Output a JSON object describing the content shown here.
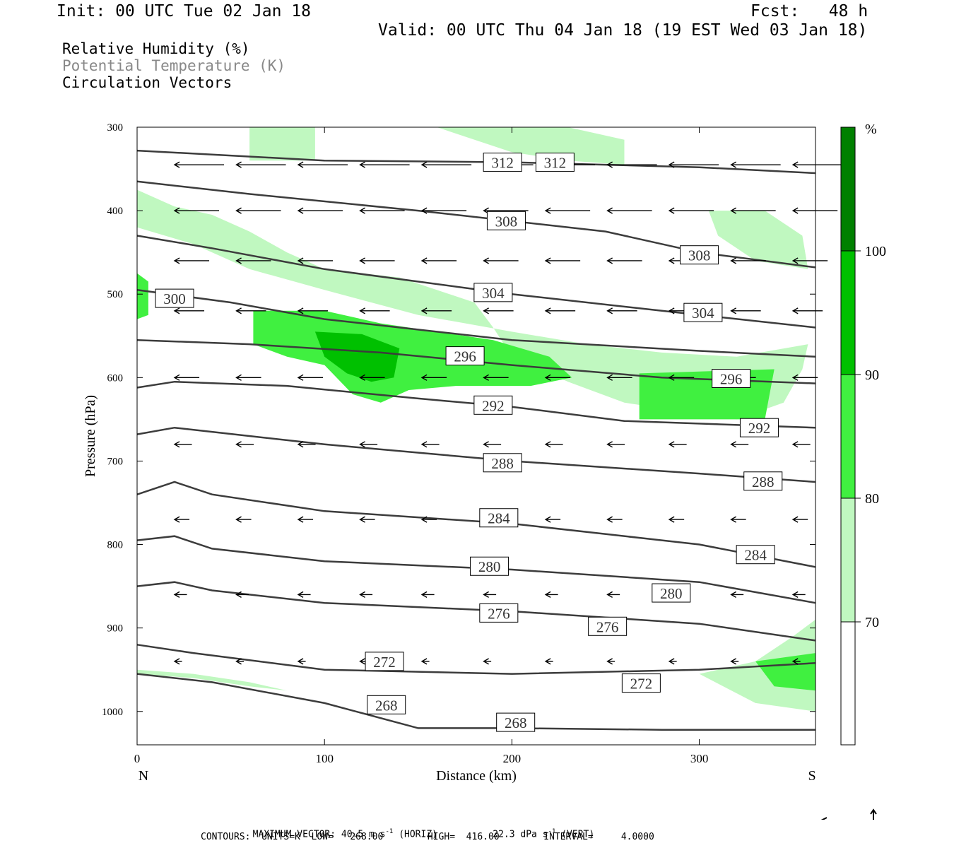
{
  "header": {
    "init": "Init: 00 UTC Tue 02 Jan 18",
    "fcst": "Fcst:   48 h",
    "valid": "Valid: 00 UTC Thu 04 Jan 18 (19 EST Wed 03 Jan 18)"
  },
  "legend_lines": [
    {
      "text": "Relative Humidity (%)",
      "color": "#000000"
    },
    {
      "text": "Potential Temperature (K)",
      "color": "#888888"
    },
    {
      "text": "Circulation Vectors",
      "color": "#000000"
    }
  ],
  "footer": {
    "max_vector_label": "MAXIMUM VECTOR:",
    "horiz_value": "40.5 m s",
    "horiz_exp": "-1",
    "horiz_tag": "(HORIZ)",
    "vert_value": "22.3 dPa s",
    "vert_exp": "-1",
    "vert_tag": "(VERT)",
    "contours": "CONTOURS:  UNITS=K  LOW=   268.00        HIGH=  416.00        INTERVAL=     4.0000"
  },
  "chart_data": {
    "type": "cross-section",
    "xlabel": "Distance (km)",
    "ylabel": "Pressure (hPa)",
    "x_ticks": [
      0,
      100,
      200,
      300
    ],
    "y_ticks": [
      300,
      400,
      500,
      600,
      700,
      800,
      900,
      1000
    ],
    "xlim": [
      0,
      362
    ],
    "ylim": [
      300,
      1040
    ],
    "y_reversed": true,
    "left_end_label": "N",
    "right_end_label": "S",
    "colorbar": {
      "unit": "%",
      "levels": [
        70,
        80,
        90,
        100
      ],
      "colors": [
        "#ffffff",
        "#c0f8c0",
        "#40f040",
        "#00c000",
        "#008000"
      ]
    },
    "rh_regions": [
      {
        "level": 80,
        "points": [
          [
            0,
            375
          ],
          [
            20,
            395
          ],
          [
            40,
            405
          ],
          [
            60,
            425
          ],
          [
            80,
            450
          ],
          [
            100,
            470
          ],
          [
            140,
            480
          ],
          [
            180,
            510
          ],
          [
            190,
            540
          ],
          [
            200,
            575
          ],
          [
            230,
            605
          ],
          [
            260,
            630
          ],
          [
            290,
            640
          ],
          [
            320,
            650
          ],
          [
            345,
            630
          ],
          [
            355,
            590
          ],
          [
            358,
            560
          ],
          [
            320,
            575
          ],
          [
            280,
            570
          ],
          [
            240,
            560
          ],
          [
            200,
            545
          ],
          [
            150,
            525
          ],
          [
            100,
            495
          ],
          [
            60,
            470
          ],
          [
            30,
            440
          ],
          [
            0,
            420
          ]
        ]
      },
      {
        "level": 80,
        "points": [
          [
            60,
            300
          ],
          [
            95,
            300
          ],
          [
            95,
            340
          ],
          [
            60,
            340
          ]
        ]
      },
      {
        "level": 80,
        "points": [
          [
            160,
            300
          ],
          [
            230,
            300
          ],
          [
            260,
            315
          ],
          [
            260,
            345
          ],
          [
            230,
            340
          ],
          [
            200,
            330
          ]
        ]
      },
      {
        "level": 80,
        "points": [
          [
            305,
            400
          ],
          [
            335,
            400
          ],
          [
            355,
            430
          ],
          [
            358,
            470
          ],
          [
            330,
            460
          ],
          [
            310,
            430
          ]
        ]
      },
      {
        "level": 80,
        "points": [
          [
            300,
            955
          ],
          [
            330,
            940
          ],
          [
            350,
            910
          ],
          [
            362,
            890
          ],
          [
            362,
            1000
          ],
          [
            330,
            990
          ]
        ]
      },
      {
        "level": 80,
        "points": [
          [
            0,
            950
          ],
          [
            30,
            955
          ],
          [
            60,
            965
          ],
          [
            80,
            975
          ],
          [
            60,
            970
          ],
          [
            30,
            960
          ],
          [
            0,
            955
          ]
        ]
      },
      {
        "level": 90,
        "points": [
          [
            62,
            520
          ],
          [
            100,
            520
          ],
          [
            130,
            535
          ],
          [
            160,
            545
          ],
          [
            190,
            555
          ],
          [
            220,
            575
          ],
          [
            232,
            600
          ],
          [
            210,
            610
          ],
          [
            170,
            610
          ],
          [
            145,
            615
          ],
          [
            130,
            630
          ],
          [
            115,
            620
          ],
          [
            100,
            585
          ],
          [
            80,
            575
          ],
          [
            62,
            560
          ]
        ]
      },
      {
        "level": 90,
        "points": [
          [
            268,
            595
          ],
          [
            340,
            590
          ],
          [
            335,
            650
          ],
          [
            268,
            650
          ]
        ]
      },
      {
        "level": 90,
        "points": [
          [
            0,
            475
          ],
          [
            6,
            485
          ],
          [
            6,
            525
          ],
          [
            0,
            530
          ]
        ]
      },
      {
        "level": 90,
        "points": [
          [
            330,
            940
          ],
          [
            362,
            930
          ],
          [
            362,
            975
          ],
          [
            340,
            970
          ]
        ]
      },
      {
        "level": 100,
        "points": [
          [
            95,
            545
          ],
          [
            120,
            548
          ],
          [
            140,
            565
          ],
          [
            137,
            600
          ],
          [
            125,
            605
          ],
          [
            112,
            595
          ],
          [
            100,
            575
          ]
        ]
      }
    ],
    "theta_contours": [
      {
        "value": 312,
        "points": [
          [
            0,
            328
          ],
          [
            100,
            340
          ],
          [
            200,
            342
          ],
          [
            300,
            348
          ],
          [
            362,
            355
          ]
        ]
      },
      {
        "value": 308,
        "points": [
          [
            0,
            365
          ],
          [
            60,
            380
          ],
          [
            150,
            400
          ],
          [
            250,
            425
          ],
          [
            300,
            450
          ],
          [
            362,
            468
          ]
        ]
      },
      {
        "value": 304,
        "points": [
          [
            0,
            430
          ],
          [
            40,
            445
          ],
          [
            100,
            470
          ],
          [
            200,
            500
          ],
          [
            280,
            520
          ],
          [
            362,
            540
          ]
        ]
      },
      {
        "value": 300,
        "points": [
          [
            0,
            495
          ],
          [
            50,
            510
          ],
          [
            100,
            530
          ],
          [
            200,
            555
          ],
          [
            300,
            568
          ],
          [
            362,
            575
          ]
        ]
      },
      {
        "value": 296,
        "points": [
          [
            0,
            555
          ],
          [
            60,
            560
          ],
          [
            130,
            570
          ],
          [
            200,
            585
          ],
          [
            280,
            600
          ],
          [
            362,
            607
          ]
        ]
      },
      {
        "value": 292,
        "points": [
          [
            0,
            612
          ],
          [
            20,
            605
          ],
          [
            80,
            610
          ],
          [
            150,
            625
          ],
          [
            200,
            635
          ],
          [
            260,
            652
          ],
          [
            362,
            660
          ]
        ]
      },
      {
        "value": 288,
        "points": [
          [
            0,
            668
          ],
          [
            20,
            660
          ],
          [
            40,
            665
          ],
          [
            100,
            680
          ],
          [
            200,
            700
          ],
          [
            300,
            715
          ],
          [
            362,
            725
          ]
        ]
      },
      {
        "value": 284,
        "points": [
          [
            0,
            740
          ],
          [
            20,
            725
          ],
          [
            40,
            740
          ],
          [
            100,
            760
          ],
          [
            200,
            775
          ],
          [
            300,
            800
          ],
          [
            362,
            827
          ]
        ]
      },
      {
        "value": 280,
        "points": [
          [
            0,
            795
          ],
          [
            20,
            790
          ],
          [
            40,
            805
          ],
          [
            100,
            820
          ],
          [
            200,
            830
          ],
          [
            300,
            845
          ],
          [
            362,
            870
          ]
        ]
      },
      {
        "value": 276,
        "points": [
          [
            0,
            850
          ],
          [
            20,
            845
          ],
          [
            40,
            855
          ],
          [
            100,
            870
          ],
          [
            200,
            880
          ],
          [
            300,
            895
          ],
          [
            362,
            915
          ]
        ]
      },
      {
        "value": 272,
        "points": [
          [
            0,
            920
          ],
          [
            30,
            930
          ],
          [
            100,
            950
          ],
          [
            200,
            955
          ],
          [
            300,
            950
          ],
          [
            362,
            942
          ]
        ]
      },
      {
        "value": 268,
        "points": [
          [
            0,
            955
          ],
          [
            40,
            965
          ],
          [
            100,
            990
          ],
          [
            150,
            1020
          ],
          [
            200,
            1020
          ],
          [
            280,
            1022
          ],
          [
            362,
            1022
          ]
        ]
      }
    ],
    "contour_labels": [
      {
        "text": "312",
        "x": 195,
        "y": 342
      },
      {
        "text": "312",
        "x": 223,
        "y": 342
      },
      {
        "text": "308",
        "x": 197,
        "y": 412
      },
      {
        "text": "308",
        "x": 300,
        "y": 453
      },
      {
        "text": "304",
        "x": 190,
        "y": 498
      },
      {
        "text": "304",
        "x": 302,
        "y": 522
      },
      {
        "text": "300",
        "x": 20,
        "y": 505
      },
      {
        "text": "296",
        "x": 175,
        "y": 574
      },
      {
        "text": "296",
        "x": 317,
        "y": 601
      },
      {
        "text": "292",
        "x": 190,
        "y": 633
      },
      {
        "text": "292",
        "x": 332,
        "y": 660
      },
      {
        "text": "288",
        "x": 195,
        "y": 702
      },
      {
        "text": "288",
        "x": 334,
        "y": 724
      },
      {
        "text": "284",
        "x": 193,
        "y": 768
      },
      {
        "text": "284",
        "x": 330,
        "y": 812
      },
      {
        "text": "280",
        "x": 188,
        "y": 826
      },
      {
        "text": "280",
        "x": 285,
        "y": 858
      },
      {
        "text": "276",
        "x": 193,
        "y": 882
      },
      {
        "text": "276",
        "x": 251,
        "y": 898
      },
      {
        "text": "272",
        "x": 132,
        "y": 940
      },
      {
        "text": "272",
        "x": 269,
        "y": 966
      },
      {
        "text": "268",
        "x": 133,
        "y": 992
      },
      {
        "text": "268",
        "x": 202,
        "y": 1013
      }
    ],
    "vectors_rows": [
      {
        "p": 345,
        "u": 1.0
      },
      {
        "p": 400,
        "u": 0.9
      },
      {
        "p": 460,
        "u": 0.7
      },
      {
        "p": 520,
        "u": 0.6
      },
      {
        "p": 600,
        "u": 0.5
      },
      {
        "p": 680,
        "u": 0.35
      },
      {
        "p": 770,
        "u": 0.3
      },
      {
        "p": 860,
        "u": 0.25
      },
      {
        "p": 940,
        "u": 0.15
      }
    ],
    "reference_vector_label": ""
  }
}
